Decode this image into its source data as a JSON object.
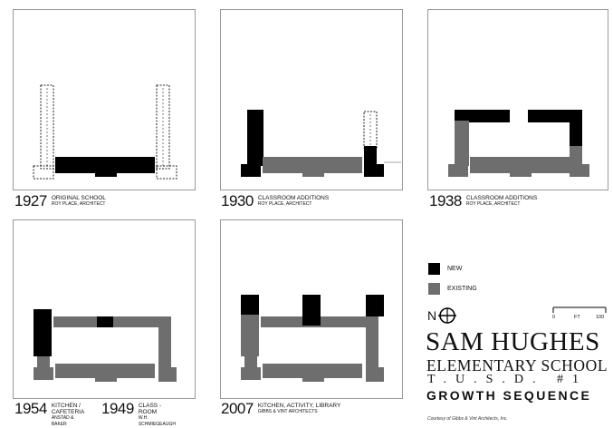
{
  "panels": [
    {
      "year": "1927",
      "title": "ORIGINAL SCHOOL",
      "architect": "ROY PLACE, ARCHITECT"
    },
    {
      "year": "1930",
      "title": "CLASSROOM ADDITIONS",
      "architect": "ROY PLACE, ARCHITECT"
    },
    {
      "year": "1938",
      "title": "CLASSROOM ADDITIONS",
      "architect": "ROY PLACE, ARCHITECT"
    },
    {
      "year": "1954",
      "title": "KITCHEN / CAFETERIA",
      "architect": "ANSTAD & BAKER"
    },
    {
      "year": "1949",
      "title": "CLASS - ROOM",
      "architect": "W.H. SCHMIEGEAUGH"
    },
    {
      "year": "2007",
      "title": "KITCHEN, ACTIVITY, LIBRARY",
      "architect": "GIBBS & VINT ARCHITECTS"
    }
  ],
  "legend": {
    "new_label": "NEW",
    "existing_label": "EXISTING",
    "north_label": "N",
    "scale_labels": [
      "0",
      "FT",
      "100"
    ],
    "colors": {
      "new": "#000000",
      "existing": "#6e6e6e"
    }
  },
  "title_block": {
    "line1": "SAM HUGHES",
    "line2": "ELEMENTARY SCHOOL",
    "line3": "T.U.S.D. #1",
    "line4": "GROWTH SEQUENCE",
    "credit": "Courtesy of Gibbs & Vint Architects, Inc."
  }
}
